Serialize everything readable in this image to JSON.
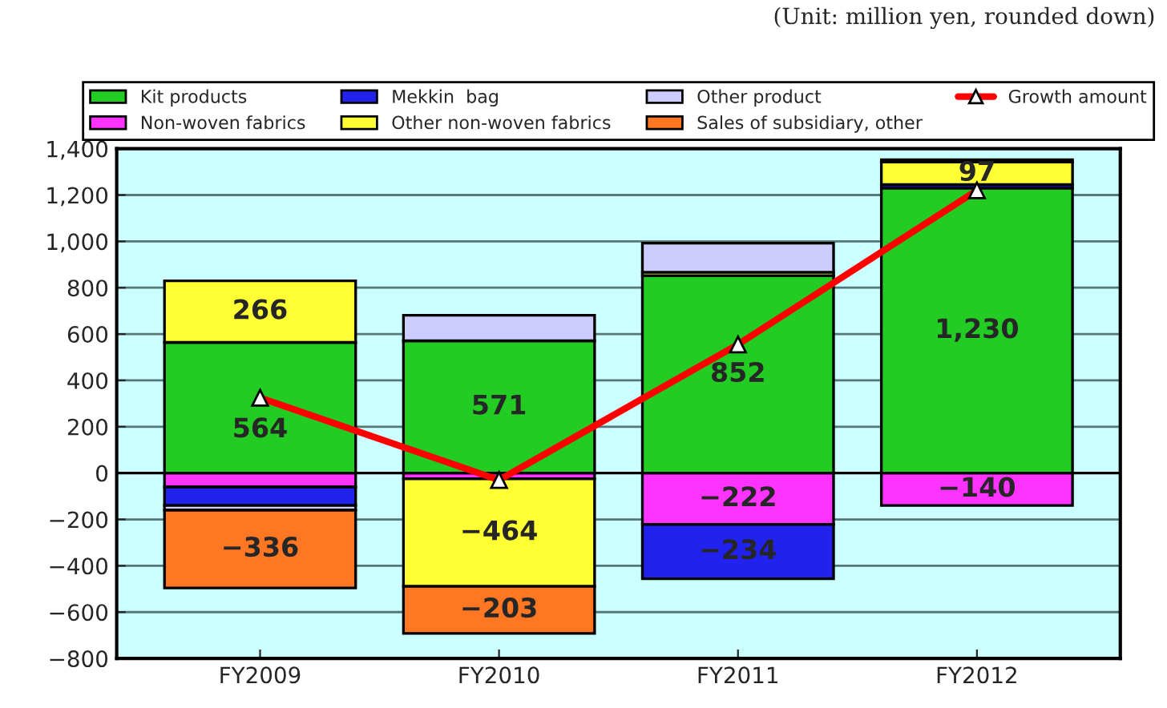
{
  "chart_data": {
    "type": "bar",
    "stacked": true,
    "categories": [
      "FY2009",
      "FY2010",
      "FY2011",
      "FY2012"
    ],
    "series": [
      {
        "name": "Kit products",
        "color": "#22cc22",
        "values": [
          564,
          571,
          852,
          1230
        ],
        "value_labels": [
          "564",
          "571",
          "852",
          "1,230"
        ]
      },
      {
        "name": "Non-woven fabrics",
        "color": "#ff33ff",
        "values": [
          -60,
          -25,
          -222,
          -140
        ],
        "value_labels": [
          null,
          null,
          "−222",
          "−140"
        ]
      },
      {
        "name": "Mekkin  bag",
        "color": "#2222ee",
        "values": [
          -80,
          null,
          -234,
          15
        ],
        "value_labels": [
          null,
          null,
          "−234",
          null
        ]
      },
      {
        "name": "Other non-woven fabrics",
        "color": "#ffff33",
        "values": [
          266,
          -464,
          15,
          97
        ],
        "value_labels": [
          "266",
          "−464",
          null,
          "97"
        ]
      },
      {
        "name": "Other product",
        "color": "#ccccff",
        "values": [
          -20,
          110,
          125,
          null
        ],
        "value_labels": [
          null,
          null,
          null,
          null
        ]
      },
      {
        "name": "Sales of subsidiary, other",
        "color": "#ff7722",
        "values": [
          -336,
          -203,
          null,
          10
        ],
        "value_labels": [
          "−336",
          "−203",
          null,
          null
        ]
      },
      {
        "name": "Growth amount",
        "type": "line",
        "color": "#ff0000",
        "marker": "triangle",
        "values": [
          325,
          -30,
          555,
          1220
        ]
      }
    ],
    "ylim": [
      -800,
      1400
    ],
    "yticks": [
      {
        "value": -800,
        "label": "−800"
      },
      {
        "value": -600,
        "label": "−600"
      },
      {
        "value": -400,
        "label": "−400"
      },
      {
        "value": -200,
        "label": "−200"
      },
      0,
      200,
      400,
      600,
      800,
      {
        "value": 1000,
        "label": "1,000"
      },
      {
        "value": 1200,
        "label": "1,200"
      },
      {
        "value": 1400,
        "label": "1,400"
      }
    ],
    "grid": "y",
    "legend": "top",
    "annotations": [
      "(Unit: million yen, rounded down)"
    ]
  }
}
